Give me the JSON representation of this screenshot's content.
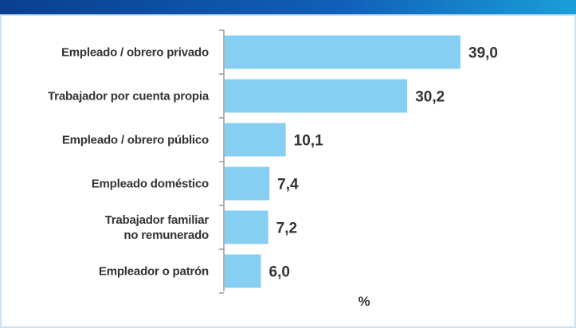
{
  "chart_data": {
    "type": "bar",
    "orientation": "horizontal",
    "categories": [
      "Empleado / obrero privado",
      "Trabajador por cuenta propia",
      "Empleado / obrero público",
      "Empleado doméstico",
      "Trabajador familiar\nno remunerado",
      "Empleador o patrón"
    ],
    "values": [
      39.0,
      30.2,
      10.1,
      7.4,
      7.2,
      6.0
    ],
    "value_labels": [
      "39,0",
      "30,2",
      "10,1",
      "7,4",
      "7,2",
      "6,0"
    ],
    "xlabel": "%",
    "color": "#87cff2"
  }
}
